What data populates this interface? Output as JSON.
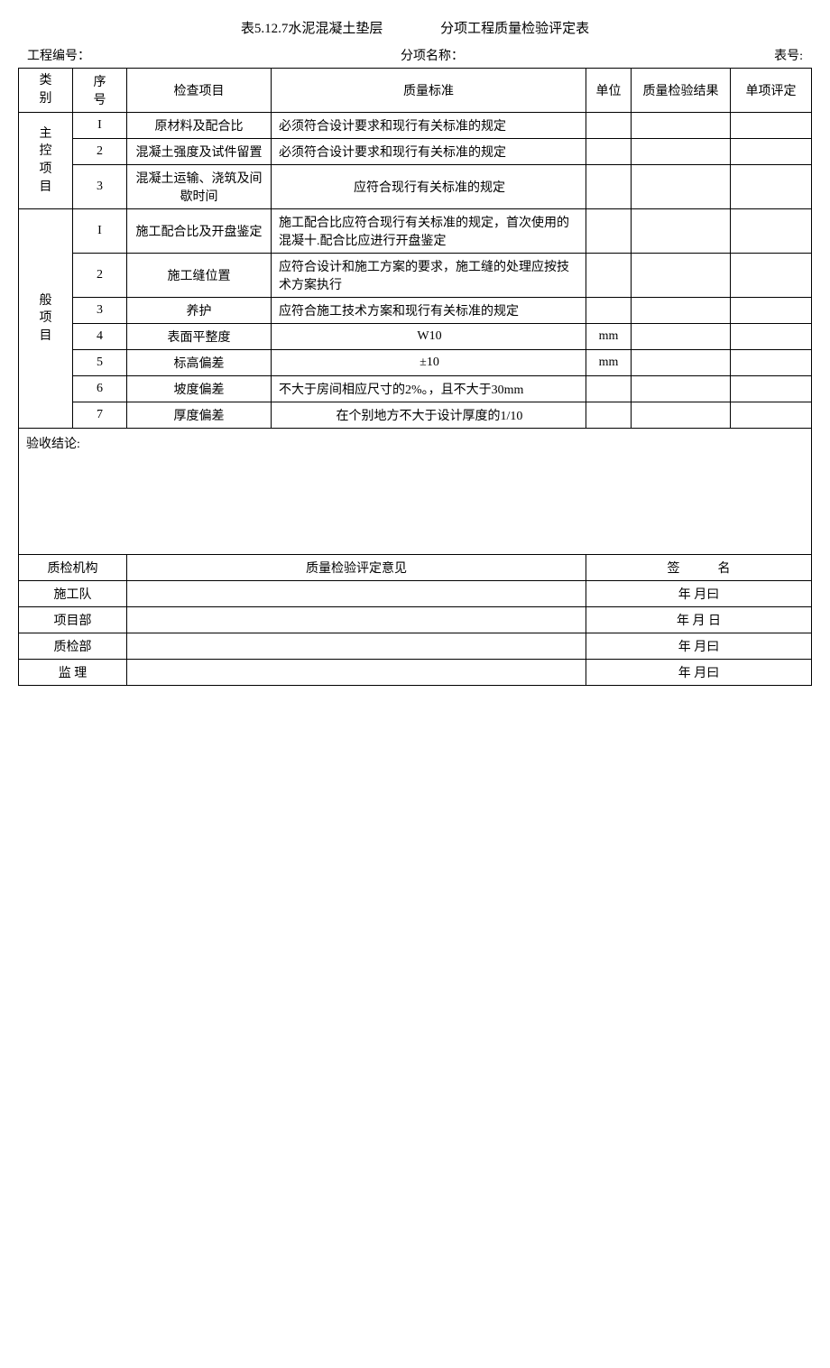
{
  "title": {
    "left": "表5.12.7水泥混凝土垫层",
    "right": "分项工程质量检验评定表"
  },
  "header": {
    "project_no_label": "工程编号：",
    "subitem_name_label": "分项名称：",
    "table_no_label": "表号:"
  },
  "table_head": {
    "category": "类\n别",
    "seq": "序\n号",
    "check_item": "检查项目",
    "standard": "质量标准",
    "unit": "单位",
    "result": "质量检验结果",
    "rating": "单项评定"
  },
  "main_group_label": "主\n控\n项\n目",
  "main_items": [
    {
      "seq": "I",
      "item": "原材料及配合比",
      "std": "必须符合设计要求和现行有关标准的规定",
      "unit": ""
    },
    {
      "seq": "2",
      "item": "混凝土强度及试件留置",
      "std": "必须符合设计要求和现行有关标准的规定",
      "unit": ""
    },
    {
      "seq": "3",
      "item": "混凝土运输、浇筑及间歇时间",
      "std": "应符合现行有关标准的规定",
      "unit": ""
    }
  ],
  "general_group_label": "般\n项\n目",
  "general_items": [
    {
      "seq": "I",
      "item": "施工配合比及开盘鉴定",
      "std": "施工配合比应符合现行有关标准的规定，首次使用的混凝十.配合比应进行开盘鉴定",
      "unit": ""
    },
    {
      "seq": "2",
      "item": "施工缝位置",
      "std": "应符合设计和施工方案的要求，施工缝的处理应按技术方案执行",
      "unit": ""
    },
    {
      "seq": "3",
      "item": "养护",
      "std": "应符合施工技术方案和现行有关标准的规定",
      "unit": ""
    },
    {
      "seq": "4",
      "item": "表面平整度",
      "std": "W10",
      "unit": "mm"
    },
    {
      "seq": "5",
      "item": "标高偏差",
      "std": "±10",
      "unit": "mm"
    },
    {
      "seq": "6",
      "item": "坡度偏差",
      "std": "不大于房间相应尺寸的2%。，且不大于30mm",
      "unit": ""
    },
    {
      "seq": "7",
      "item": "厚度偏差",
      "std": "在个别地方不大于设计厚度的1/10",
      "unit": ""
    }
  ],
  "conclusion_label": "验收结论:",
  "sig": {
    "org_label": "质检机构",
    "opinion_label": "质量检验评定意见",
    "signature_label": "签　　　名",
    "rows": [
      {
        "label": "施工队",
        "date": "年 月曰"
      },
      {
        "label": "项目部",
        "date": "年 月 日"
      },
      {
        "label": "质检部",
        "date": "年 月曰"
      },
      {
        "label": "监 理",
        "date": "年 月曰"
      }
    ]
  }
}
